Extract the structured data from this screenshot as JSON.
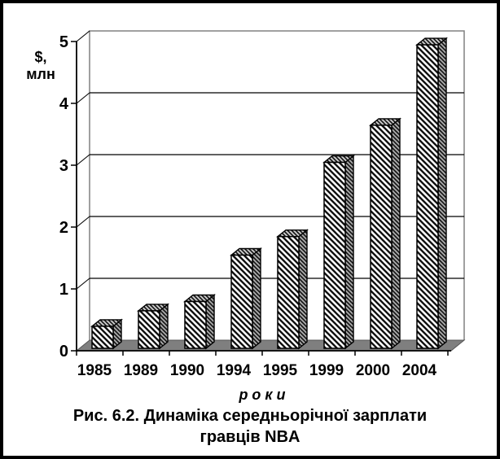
{
  "chart_data": {
    "type": "bar",
    "style": "3d-column-hatched",
    "title": "Рис. 6.2. Динаміка середньорічної зарплати гравців NBA",
    "categories": [
      "1985",
      "1989",
      "1990",
      "1994",
      "1995",
      "1999",
      "2000",
      "2004"
    ],
    "values": [
      0.35,
      0.6,
      0.75,
      1.5,
      1.8,
      3.0,
      3.6,
      4.9
    ],
    "xlabel": "р о к и",
    "ylabel": "$, млн",
    "ylim": [
      0,
      5
    ],
    "yticks": [
      0,
      1,
      2,
      3,
      4,
      5
    ],
    "grid": true,
    "legend": false
  },
  "labels": {
    "ylabel_line1": "$,",
    "ylabel_line2": "млн",
    "xlabel": "р о к и",
    "caption_line1": "Рис. 6.2. Динаміка середньорічної зарплати",
    "caption_line2": "гравців NBA"
  },
  "colors": {
    "frame_border": "#000000",
    "background": "#ffffff",
    "floor": "#7f7f7f",
    "floor_edge": "#555555",
    "wall_edge": "#808080",
    "gridline": "#000000",
    "axis": "#000000",
    "bar_outline": "#000000",
    "bar_front_bg": "#ffffff",
    "bar_top_bg": "#c9c9c9",
    "bar_side_bg": "#a8a8a8",
    "hatch": "#111111",
    "text": "#000000"
  }
}
